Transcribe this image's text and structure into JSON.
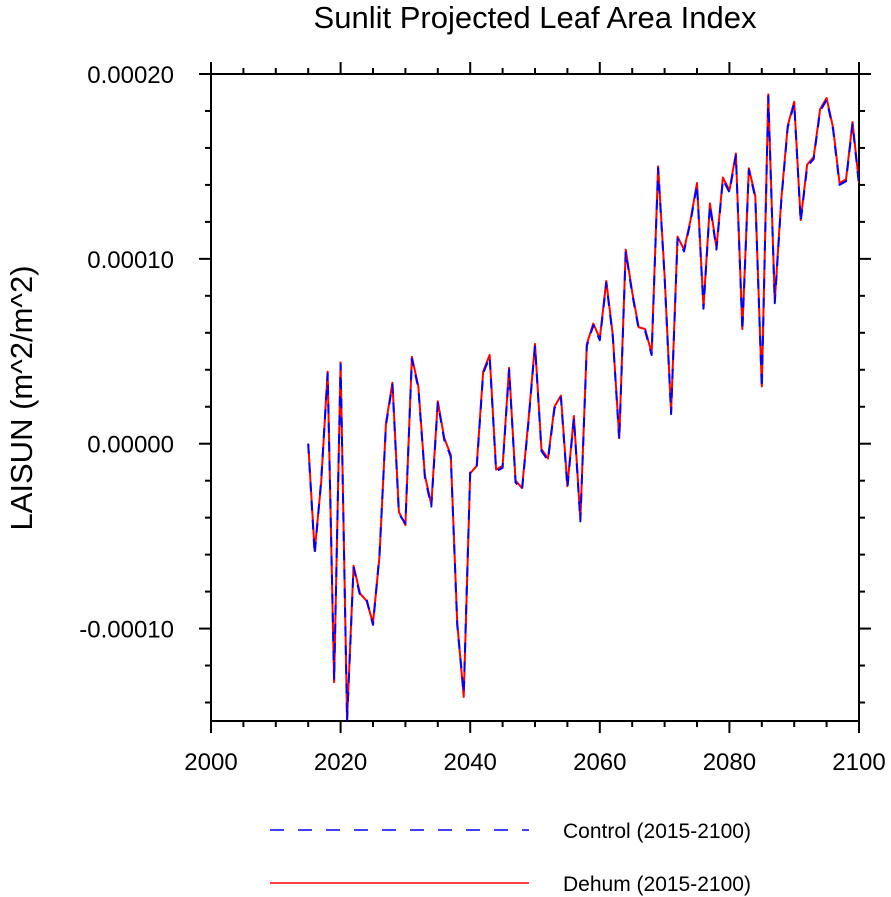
{
  "chart_data": {
    "type": "line",
    "title": "Sunlit Projected Leaf Area Index",
    "xlabel": "",
    "ylabel": "LAISUN  (m^2/m^2)",
    "xlim": [
      2000,
      2100
    ],
    "ylim": [
      -0.00015,
      0.0002
    ],
    "x_ticks": [
      2000,
      2020,
      2040,
      2060,
      2080,
      2100
    ],
    "x_tick_labels": [
      "2000",
      "2020",
      "2040",
      "2060",
      "2080",
      "2100"
    ],
    "y_ticks": [
      -0.0001,
      0.0,
      0.0001,
      0.0002
    ],
    "y_tick_labels": [
      "-0.00010",
      "0.00000",
      "0.00010",
      "0.00020"
    ],
    "x": [
      2015,
      2016,
      2017,
      2018,
      2019,
      2020,
      2021,
      2022,
      2023,
      2024,
      2025,
      2026,
      2027,
      2028,
      2029,
      2030,
      2031,
      2032,
      2033,
      2034,
      2035,
      2036,
      2037,
      2038,
      2039,
      2040,
      2041,
      2042,
      2043,
      2044,
      2045,
      2046,
      2047,
      2048,
      2049,
      2050,
      2051,
      2052,
      2053,
      2054,
      2055,
      2056,
      2057,
      2058,
      2059,
      2060,
      2061,
      2062,
      2063,
      2064,
      2065,
      2066,
      2067,
      2068,
      2069,
      2070,
      2071,
      2072,
      2073,
      2074,
      2075,
      2076,
      2077,
      2078,
      2079,
      2080,
      2081,
      2082,
      2083,
      2084,
      2085,
      2086,
      2087,
      2088,
      2089,
      2090,
      2091,
      2092,
      2093,
      2094,
      2095,
      2096,
      2097,
      2098,
      2099,
      2100
    ],
    "series": [
      {
        "name": "Control (2015-2100)",
        "color": "#0000ff",
        "style": "dashed",
        "values": [
          0.0,
          -6e-05,
          -2e-05,
          3.8e-05,
          -0.000128,
          4.3e-05,
          -0.00015,
          -6.7e-05,
          -8.2e-05,
          -8.4e-05,
          -9.8e-05,
          -6e-05,
          1e-05,
          3.2e-05,
          -3.8e-05,
          -4.3e-05,
          4.6e-05,
          3e-05,
          -1.8e-05,
          -3.4e-05,
          2.2e-05,
          2e-06,
          -7e-06,
          -9.8e-05,
          -0.000135,
          -1.5e-05,
          -1.3e-05,
          3.8e-05,
          4.7e-05,
          -1.5e-05,
          -1.3e-05,
          4e-05,
          -2.1e-05,
          -2.5e-05,
          1.2e-05,
          5.3e-05,
          -4e-06,
          -9e-06,
          1.9e-05,
          2.5e-05,
          -2.4e-05,
          1.4e-05,
          -4.2e-05,
          5.3e-05,
          6.4e-05,
          5.6e-05,
          8.7e-05,
          5.8e-05,
          2e-06,
          0.000104,
          8.1e-05,
          6.2e-05,
          6.1e-05,
          4.8e-05,
          0.000149,
          9e-05,
          1.6e-05,
          0.000111,
          0.000104,
          0.00012,
          0.00014,
          7.3e-05,
          0.000129,
          0.000105,
          0.000143,
          0.000136,
          0.000156,
          6.1e-05,
          0.000148,
          0.000133,
          3e-05,
          0.000188,
          7.6e-05,
          0.000131,
          0.000171,
          0.000184,
          0.00012,
          0.00015,
          0.000154,
          0.00018,
          0.000186,
          0.00017,
          0.00014,
          0.000142,
          0.000173,
          0.00014
        ]
      },
      {
        "name": "Dehum (2015-2100)",
        "color": "#ff0000",
        "style": "solid",
        "values": [
          0.0,
          -5.8e-05,
          -2.1e-05,
          3.9e-05,
          -0.000129,
          4.4e-05,
          -0.000149,
          -6.6e-05,
          -8.1e-05,
          -8.5e-05,
          -9.7e-05,
          -6.1e-05,
          1.1e-05,
          3.3e-05,
          -3.7e-05,
          -4.4e-05,
          4.7e-05,
          3.1e-05,
          -1.7e-05,
          -3.3e-05,
          2.3e-05,
          3e-06,
          -6e-06,
          -9.7e-05,
          -0.000137,
          -1.6e-05,
          -1.2e-05,
          3.9e-05,
          4.8e-05,
          -1.4e-05,
          -1.2e-05,
          4.1e-05,
          -2e-05,
          -2.4e-05,
          1.3e-05,
          5.4e-05,
          -3e-06,
          -8e-06,
          2e-05,
          2.6e-05,
          -2.3e-05,
          1.5e-05,
          -4.1e-05,
          5.4e-05,
          6.5e-05,
          5.7e-05,
          8.8e-05,
          5.9e-05,
          3e-06,
          0.000105,
          8.2e-05,
          6.3e-05,
          6.2e-05,
          4.9e-05,
          0.00015,
          9.1e-05,
          1.7e-05,
          0.000112,
          0.000105,
          0.000121,
          0.000141,
          7.4e-05,
          0.00013,
          0.000106,
          0.000144,
          0.000137,
          0.000157,
          6.2e-05,
          0.000149,
          0.000134,
          3.1e-05,
          0.000189,
          7.7e-05,
          0.000132,
          0.000172,
          0.000185,
          0.000121,
          0.000151,
          0.000155,
          0.000181,
          0.000187,
          0.000171,
          0.000141,
          0.000143,
          0.000174,
          0.000141
        ]
      }
    ],
    "legend": {
      "position": "bottom",
      "entries": [
        "Control (2015-2100)",
        "Dehum (2015-2100)"
      ]
    },
    "grid": false
  }
}
